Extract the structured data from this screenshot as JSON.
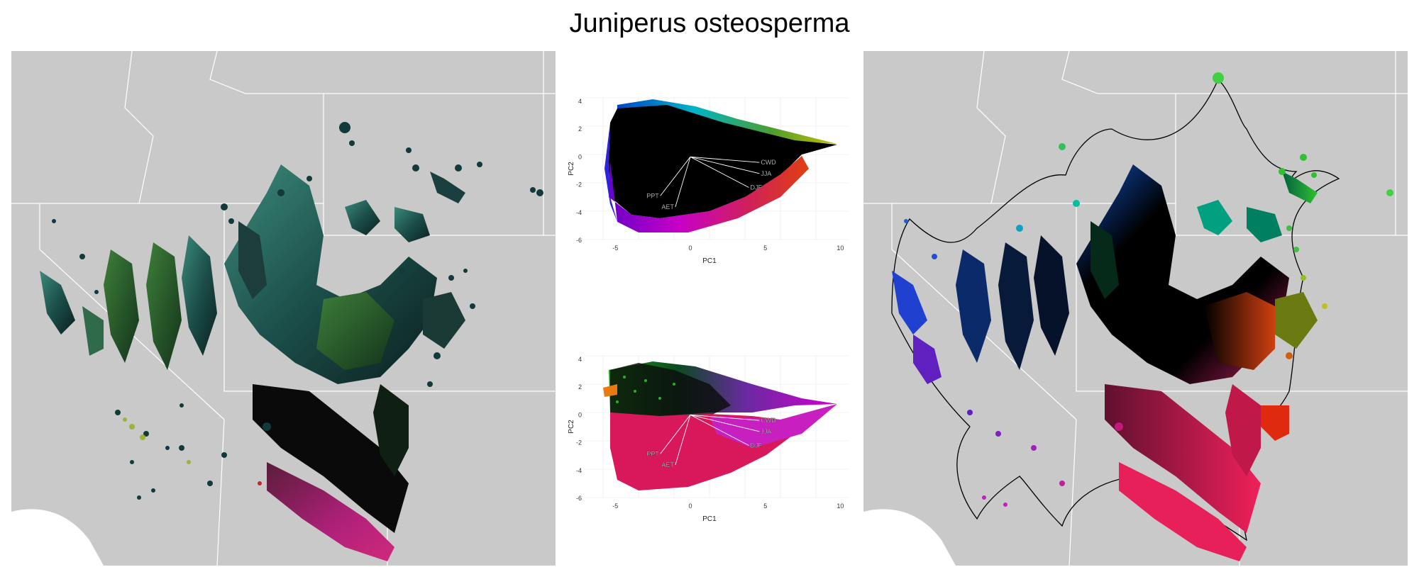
{
  "title": "Juniperus osteosperma",
  "pca_top": {
    "xlabel": "PC1",
    "ylabel": "PC2",
    "x_ticks": [
      "-5",
      "0",
      "5",
      "10"
    ],
    "y_ticks": [
      "4",
      "2",
      "0",
      "-2",
      "-4",
      "-6"
    ],
    "vectors": [
      {
        "label": "CWD",
        "x": 4.6,
        "y": -0.4
      },
      {
        "label": "JJA",
        "x": 4.6,
        "y": -1.2
      },
      {
        "label": "DJF",
        "x": 3.9,
        "y": -2.2
      },
      {
        "label": "PPT",
        "x": -2.0,
        "y": -2.8
      },
      {
        "label": "AET",
        "x": -1.0,
        "y": -3.6
      }
    ]
  },
  "pca_bottom": {
    "xlabel": "PC1",
    "ylabel": "PC2",
    "x_ticks": [
      "-5",
      "0",
      "5",
      "10"
    ],
    "y_ticks": [
      "4",
      "2",
      "0",
      "-2",
      "-4",
      "-6"
    ],
    "vectors": [
      {
        "label": "CWD",
        "x": 4.6,
        "y": -0.4
      },
      {
        "label": "JJA",
        "x": 4.6,
        "y": -1.2
      },
      {
        "label": "DJF",
        "x": 3.9,
        "y": -2.2
      },
      {
        "label": "PPT",
        "x": -2.0,
        "y": -2.8
      },
      {
        "label": "AET",
        "x": -1.0,
        "y": -3.6
      }
    ]
  },
  "colors": {
    "map_background": "#c9c9c9",
    "state_borders": "#ffffff",
    "hull_outline": "#000000"
  }
}
